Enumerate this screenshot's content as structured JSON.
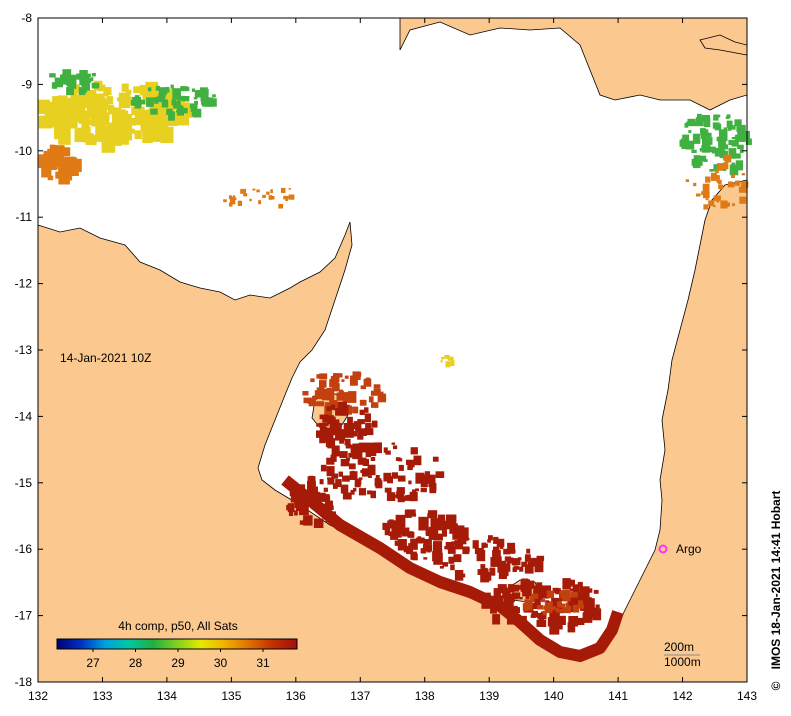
{
  "map": {
    "timestamp_label": "14-Jan-2021 10Z",
    "credit": "IMOS 18-Jan-2021 14:41 Hobart",
    "copyright_symbol": "©",
    "lon_ticks": [
      "132",
      "133",
      "134",
      "135",
      "136",
      "137",
      "138",
      "139",
      "140",
      "141",
      "142",
      "143"
    ],
    "lat_ticks": [
      "-8",
      "-9",
      "-10",
      "-11",
      "-12",
      "-13",
      "-14",
      "-15",
      "-16",
      "-17",
      "-18"
    ],
    "colorbar": {
      "title": "4h comp, p50, All Sats",
      "tick_labels": [
        "27",
        "28",
        "29",
        "30",
        "31"
      ],
      "colors": [
        "#000070",
        "#0030c0",
        "#00a0e0",
        "#00c8a0",
        "#20b040",
        "#80d020",
        "#e8e800",
        "#f0b000",
        "#e07000",
        "#c03000",
        "#a01010"
      ]
    },
    "argo": {
      "label": "Argo",
      "color": "#ff30ff"
    },
    "depth_legend": [
      "200m",
      "1000m"
    ],
    "colors": {
      "land": "#fbc890",
      "ocean": "#ffffff",
      "hot": "#a61a08",
      "warm": "#c2410f",
      "mid": "#e07a14",
      "yellow": "#e8d020",
      "green": "#40b040"
    }
  }
}
